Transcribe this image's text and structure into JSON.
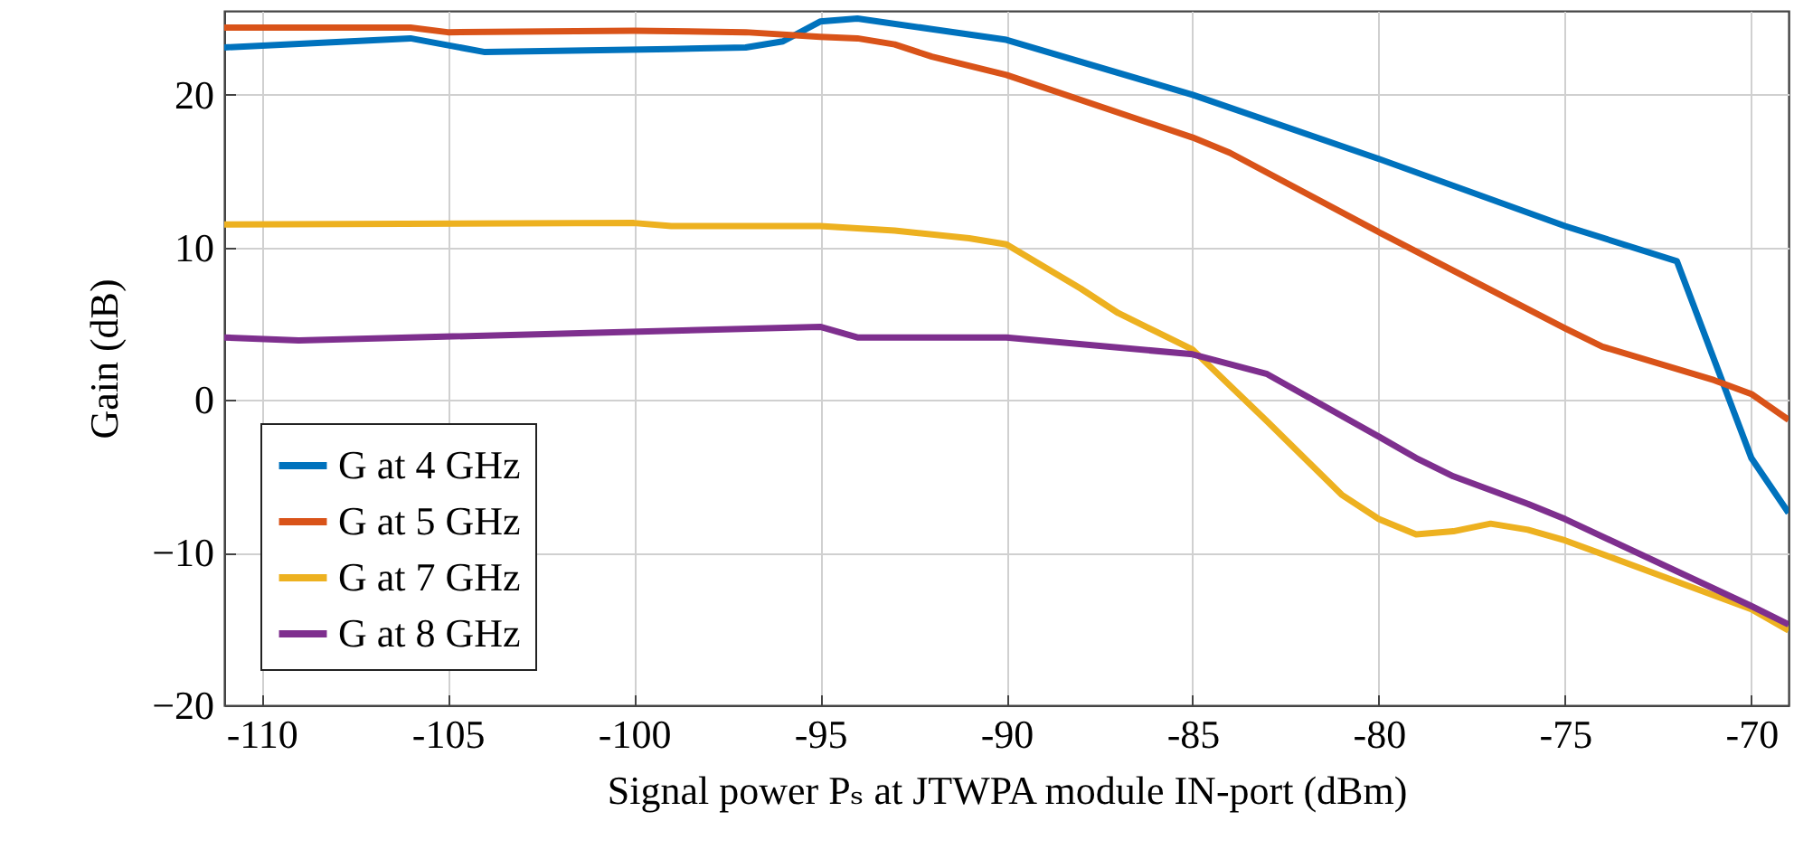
{
  "chart_data": {
    "type": "line",
    "xlabel": "Signal power Pₛ at JTWPA module IN-port (dBm)",
    "ylabel": "Gain (dB)",
    "xlim": [
      -111,
      -69
    ],
    "ylim": [
      -20,
      25.5
    ],
    "xticks": [
      -110,
      -105,
      -100,
      -95,
      -90,
      -85,
      -80,
      -75,
      -70
    ],
    "yticks": [
      {
        "value": -20,
        "label": "−20"
      },
      {
        "value": -10,
        "label": "−10"
      },
      0,
      10,
      20
    ],
    "grid": true,
    "legend": "bottom left",
    "line_style": "solid",
    "marker": "none",
    "series": [
      {
        "name": "G at 4 GHz",
        "color": "#0072bd",
        "x": [
          -111,
          -106,
          -104,
          -99,
          -97,
          -96,
          -95,
          -94,
          -92,
          -90,
          -85,
          -80,
          -75,
          -72,
          -70,
          -69
        ],
        "values": [
          23.1,
          23.7,
          22.8,
          23.0,
          23.1,
          23.5,
          24.8,
          25.0,
          24.3,
          23.6,
          20.0,
          15.8,
          11.4,
          9.1,
          -3.8,
          -7.4
        ]
      },
      {
        "name": "G at 5 GHz",
        "color": "#d95319",
        "x": [
          -111,
          -106,
          -105,
          -100,
          -97,
          -95,
          -94,
          -93,
          -92,
          -90,
          -85,
          -84,
          -80,
          -75,
          -74,
          -71,
          -70,
          -69
        ],
        "values": [
          24.4,
          24.4,
          24.1,
          24.2,
          24.1,
          23.8,
          23.7,
          23.3,
          22.5,
          21.3,
          17.2,
          16.2,
          11.0,
          4.7,
          3.5,
          1.3,
          0.4,
          -1.3
        ]
      },
      {
        "name": "G at 7 GHz",
        "color": "#edb120",
        "x": [
          -111,
          -100,
          -99,
          -95,
          -93,
          -91,
          -90,
          -88,
          -87,
          -86,
          -85,
          -83,
          -81,
          -80,
          -79,
          -78,
          -77,
          -76,
          -75,
          -70,
          -69
        ],
        "values": [
          11.5,
          11.6,
          11.4,
          11.4,
          11.1,
          10.6,
          10.2,
          7.3,
          5.7,
          4.5,
          3.3,
          -1.4,
          -6.2,
          -7.8,
          -8.8,
          -8.6,
          -8.1,
          -8.5,
          -9.2,
          -13.7,
          -15.1
        ]
      },
      {
        "name": "G at 8 GHz",
        "color": "#7e2f8e",
        "x": [
          -111,
          -109,
          -95,
          -94,
          -90,
          -85,
          -83,
          -80,
          -79,
          -78,
          -76,
          -75,
          -70,
          -69
        ],
        "values": [
          4.1,
          3.9,
          4.8,
          4.1,
          4.1,
          3.0,
          1.7,
          -2.4,
          -3.8,
          -5.0,
          -6.8,
          -7.8,
          -13.5,
          -14.7
        ]
      }
    ]
  }
}
